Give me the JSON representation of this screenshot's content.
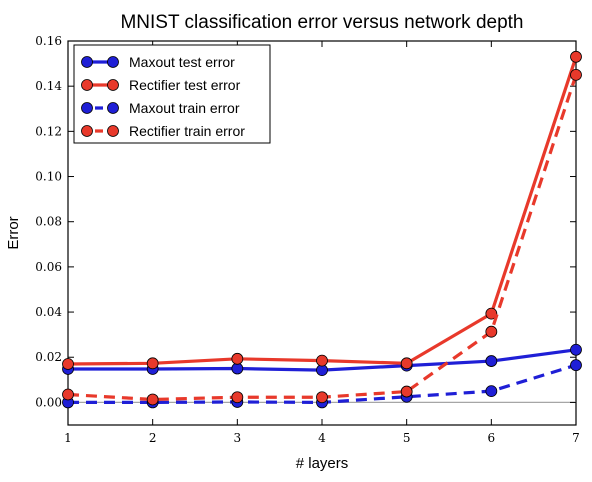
{
  "chart_data": {
    "type": "line",
    "title": "MNIST classification error versus network depth",
    "xlabel": "# layers",
    "ylabel": "Error",
    "xlim": [
      1,
      7
    ],
    "ylim": [
      -0.01,
      0.16
    ],
    "xticks": [
      1,
      2,
      3,
      4,
      5,
      6,
      7
    ],
    "yticks": [
      0.0,
      0.02,
      0.04,
      0.06,
      0.08,
      0.1,
      0.12,
      0.14,
      0.16
    ],
    "ytick_labels": [
      "0.00",
      "0.02",
      "0.04",
      "0.06",
      "0.08",
      "0.10",
      "0.12",
      "0.14",
      "0.16"
    ],
    "grid": false,
    "zero_line": true,
    "legend_position": "top-left",
    "x": [
      1,
      2,
      3,
      4,
      5,
      6,
      7
    ],
    "series": [
      {
        "name": "Maxout test error",
        "color": "#1f1fd6",
        "style": "solid",
        "values": [
          0.0148,
          0.0148,
          0.015,
          0.0143,
          0.0163,
          0.0183,
          0.0233
        ]
      },
      {
        "name": "Rectifier test error",
        "color": "#e8392b",
        "style": "solid",
        "values": [
          0.017,
          0.0173,
          0.0193,
          0.0185,
          0.0173,
          0.0393,
          0.153
        ]
      },
      {
        "name": "Maxout train error",
        "color": "#1f1fd6",
        "style": "dashed",
        "values": [
          0.0,
          0.0,
          0.0002,
          0.0,
          0.0025,
          0.005,
          0.0165
        ]
      },
      {
        "name": "Rectifier train error",
        "color": "#e8392b",
        "style": "dashed",
        "values": [
          0.0035,
          0.0013,
          0.0023,
          0.0023,
          0.0048,
          0.0313,
          0.145
        ]
      }
    ]
  }
}
